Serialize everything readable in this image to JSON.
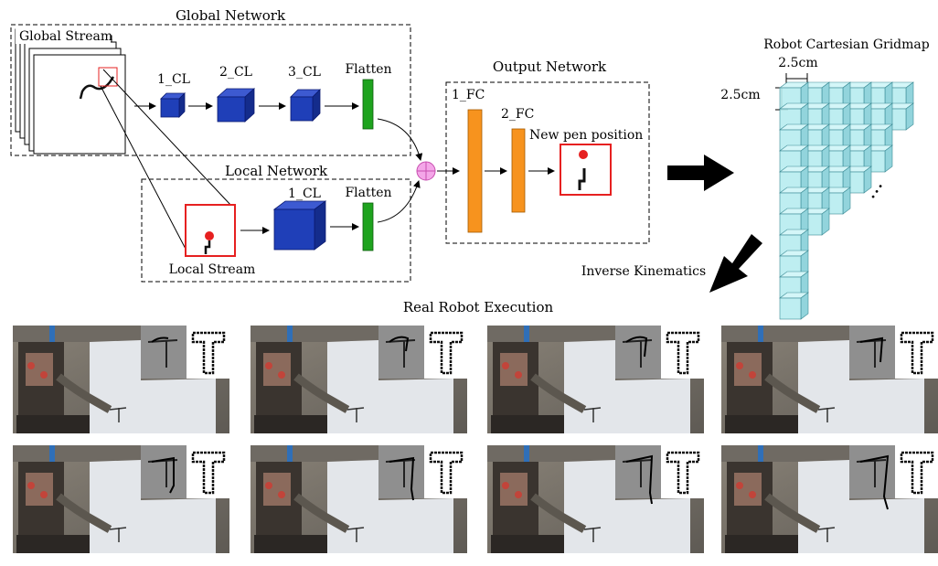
{
  "global_network": {
    "title": "Global Network",
    "stream_label": "Global Stream",
    "layers": [
      "1_CL",
      "2_CL",
      "3_CL",
      "Flatten"
    ]
  },
  "local_network": {
    "title": "Local Network",
    "stream_label": "Local Stream",
    "layers": [
      "1_CL",
      "Flatten"
    ]
  },
  "output_network": {
    "title": "Output Network",
    "layers": [
      "1_FC",
      "2_FC"
    ],
    "result_label": "New pen position"
  },
  "gridmap": {
    "title": "Robot Cartesian Gridmap",
    "cell_width": "2.5cm",
    "cell_height": "2.5cm",
    "ellipsis": "..."
  },
  "inverse_kinematics_label": "Inverse Kinematics",
  "real_robot_title": "Real Robot Execution",
  "colors": {
    "conv_block": "#1f3fb8",
    "flatten": "#1ea31e",
    "fc_layer": "#f7931e",
    "sum_node": "#f4a6e8",
    "highlight": "#e62020",
    "grid_cell": "#b7ecf0"
  }
}
